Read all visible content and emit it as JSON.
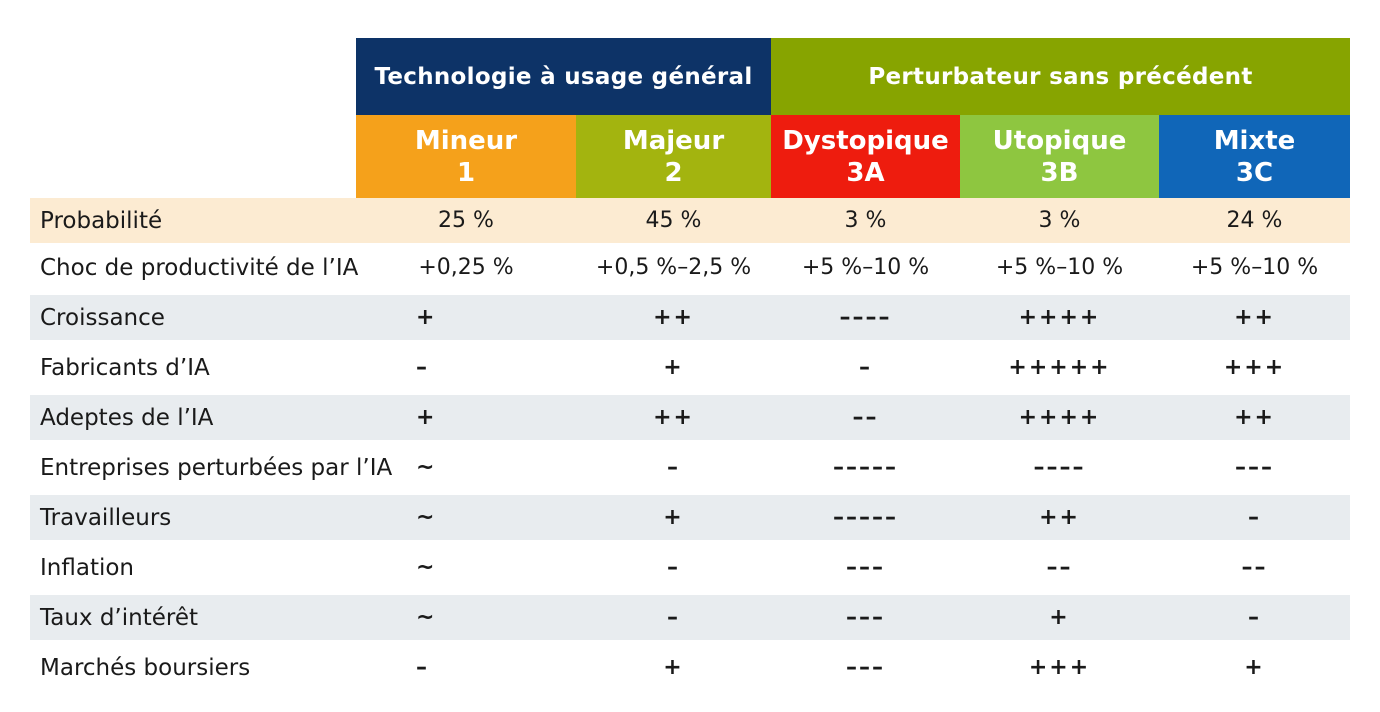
{
  "groups": {
    "general_purpose": {
      "label": "Technologie à usage général",
      "color": "#0d3367"
    },
    "disruptor": {
      "label": "Perturbateur sans précédent",
      "color": "#87a400"
    }
  },
  "scenarios": [
    {
      "name": "Mineur",
      "code": "1",
      "color": "#f5a11b"
    },
    {
      "name": "Majeur",
      "code": "2",
      "color": "#a3b40f"
    },
    {
      "name": "Dystopique",
      "code": "3A",
      "color": "#ee1c0e"
    },
    {
      "name": "Utopique",
      "code": "3B",
      "color": "#8ec640"
    },
    {
      "name": "Mixte",
      "code": "3C",
      "color": "#1066b8"
    }
  ],
  "rows": [
    {
      "label": "Probabilité",
      "values": [
        "25 %",
        "45 %",
        "3 %",
        "3 %",
        "24 %"
      ]
    },
    {
      "label": "Choc de productivité de l’IA",
      "values": [
        "+0,25 %",
        "+0,5 %–2,5 %",
        "+5 %–10 %",
        "+5 %–10 %",
        "+5 %–10 %"
      ]
    },
    {
      "label": "Croissance",
      "values": [
        "+",
        "++",
        "––––",
        "++++",
        "++"
      ]
    },
    {
      "label": "Fabricants d’IA",
      "values": [
        "–",
        "+",
        "–",
        "+++++",
        "+++"
      ]
    },
    {
      "label": "Adeptes de l’IA",
      "values": [
        "+",
        "++",
        "––",
        "++++",
        "++"
      ]
    },
    {
      "label": "Entreprises perturbées par l’IA",
      "values": [
        "~",
        "–",
        "–––––",
        "––––",
        "–––"
      ]
    },
    {
      "label": "Travailleurs",
      "values": [
        "~",
        "+",
        "–––––",
        "++",
        "–"
      ]
    },
    {
      "label": "Inflation",
      "values": [
        "~",
        "–",
        "–––",
        "––",
        "––"
      ]
    },
    {
      "label": "Taux d’intérêt",
      "values": [
        "~",
        "–",
        "–––",
        "+",
        "–"
      ]
    },
    {
      "label": "Marchés boursiers",
      "values": [
        "–",
        "+",
        "–––",
        "+++",
        "+"
      ]
    }
  ]
}
